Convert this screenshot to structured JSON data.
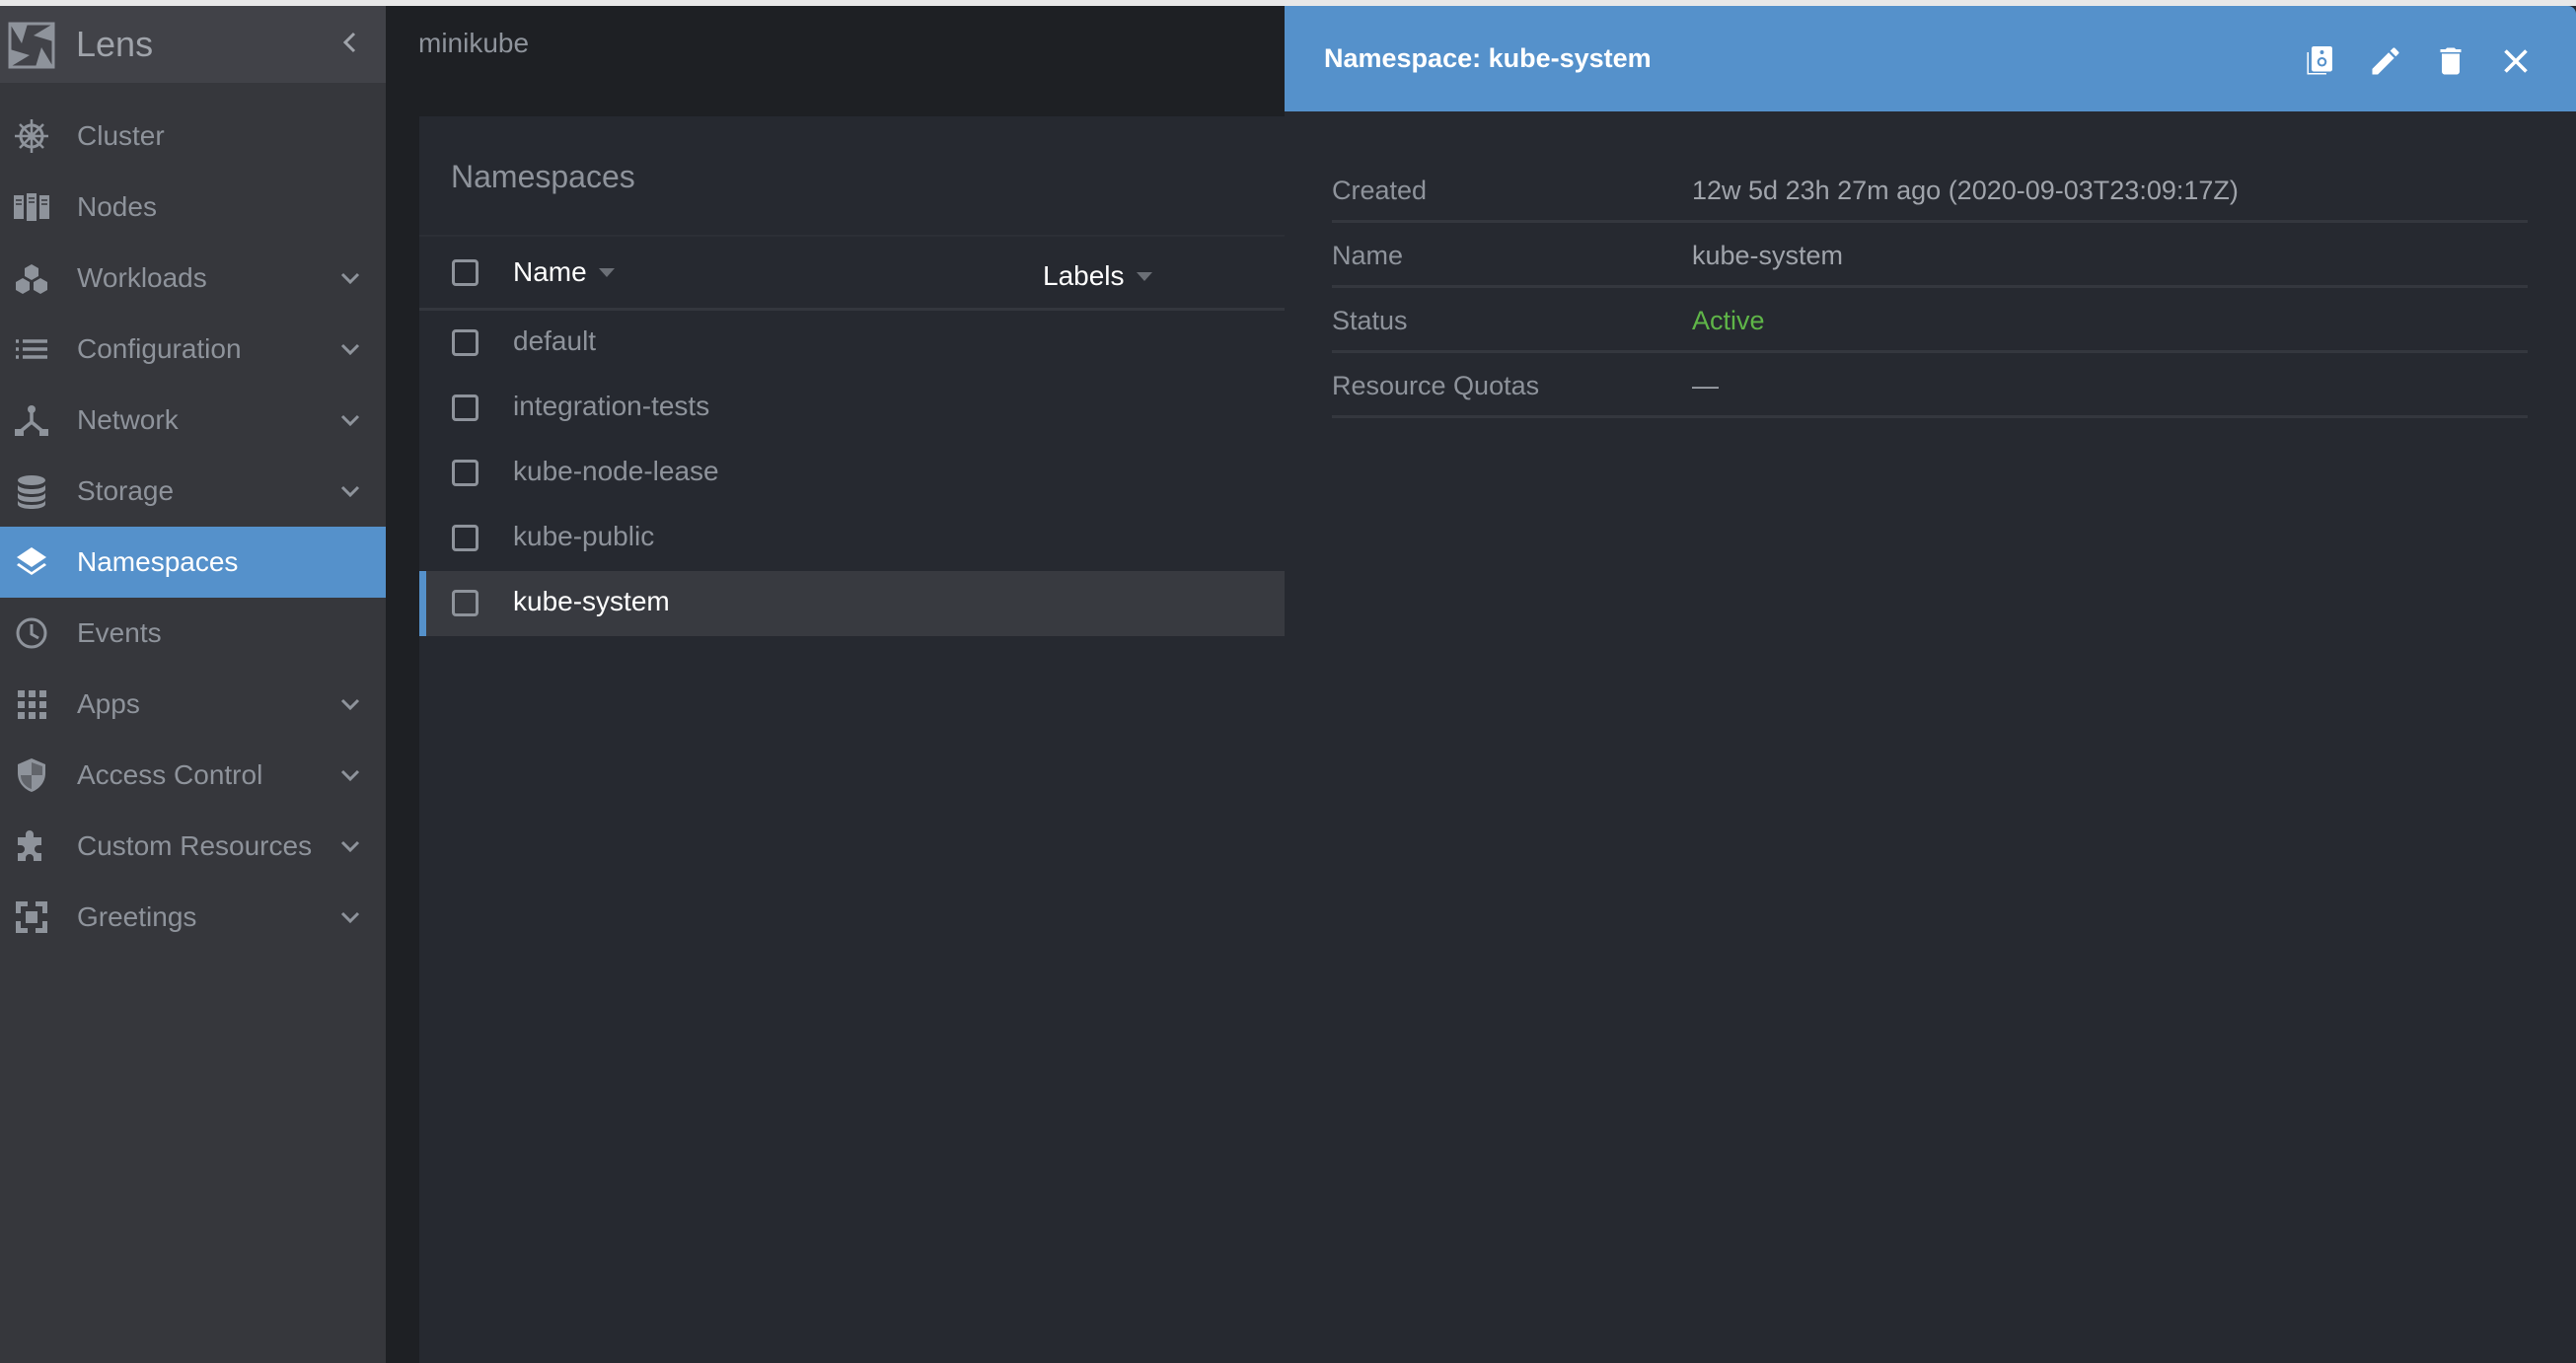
{
  "app": {
    "title": "Lens"
  },
  "sidebar": {
    "items": [
      {
        "label": "Cluster",
        "icon": "helm-wheel-icon",
        "expandable": false
      },
      {
        "label": "Nodes",
        "icon": "servers-icon",
        "expandable": false
      },
      {
        "label": "Workloads",
        "icon": "cubes-icon",
        "expandable": true
      },
      {
        "label": "Configuration",
        "icon": "list-icon",
        "expandable": true
      },
      {
        "label": "Network",
        "icon": "network-icon",
        "expandable": true
      },
      {
        "label": "Storage",
        "icon": "database-icon",
        "expandable": true
      },
      {
        "label": "Namespaces",
        "icon": "layers-icon",
        "expandable": false,
        "active": true
      },
      {
        "label": "Events",
        "icon": "clock-icon",
        "expandable": false
      },
      {
        "label": "Apps",
        "icon": "grid-icon",
        "expandable": true
      },
      {
        "label": "Access Control",
        "icon": "shield-icon",
        "expandable": true
      },
      {
        "label": "Custom Resources",
        "icon": "puzzle-icon",
        "expandable": true
      },
      {
        "label": "Greetings",
        "icon": "extension-icon",
        "expandable": true
      }
    ]
  },
  "topbar": {
    "cluster": "minikube"
  },
  "list": {
    "title": "Namespaces",
    "columns": [
      "Name",
      "Labels"
    ],
    "rows": [
      "default",
      "integration-tests",
      "kube-node-lease",
      "kube-public",
      "kube-system"
    ],
    "selected": "kube-system"
  },
  "details": {
    "title": "Namespace: kube-system",
    "actions": [
      "copy-icon",
      "edit-icon",
      "delete-icon",
      "close-icon"
    ],
    "fields": [
      {
        "label": "Created",
        "value": "12w 5d 23h 27m ago (2020-09-03T23:09:17Z)"
      },
      {
        "label": "Name",
        "value": "kube-system"
      },
      {
        "label": "Status",
        "value": "Active"
      },
      {
        "label": "Resource Quotas",
        "value": "—"
      }
    ]
  },
  "colors": {
    "accent": "#5591cb",
    "active_status": "#5fb548",
    "sidebar_bg": "#36373c",
    "panel_bg": "#262930"
  }
}
